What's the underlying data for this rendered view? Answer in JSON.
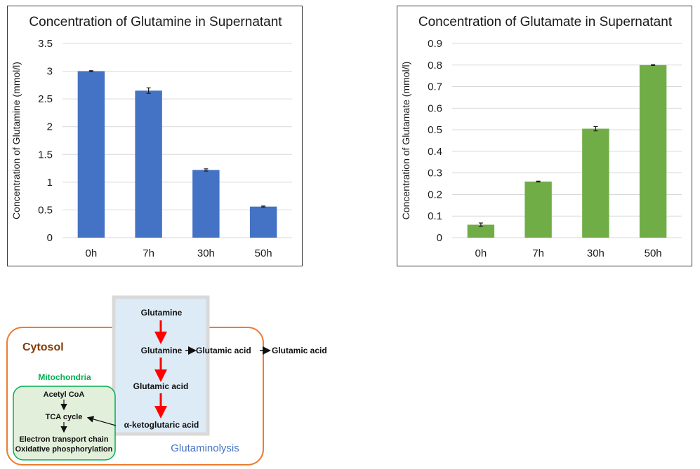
{
  "chart_data": [
    {
      "type": "bar",
      "title": "Concentration of Glutamine in Supernatant",
      "xlabel": "",
      "ylabel": "Concentration of Glutamine (mmol/l)",
      "categories": [
        "0h",
        "7h",
        "30h",
        "50h"
      ],
      "values": [
        3.0,
        2.65,
        1.22,
        0.56
      ],
      "errors": [
        0.01,
        0.05,
        0.02,
        0.01
      ],
      "ylim": [
        0,
        3.5
      ],
      "yticks": [
        "0",
        "0.5",
        "1",
        "1.5",
        "2",
        "2.5",
        "3",
        "3.5"
      ],
      "color": "#4472c4",
      "grid": true
    },
    {
      "type": "bar",
      "title": "Concentration of Glutamate in Supernatant",
      "xlabel": "",
      "ylabel": "Concentration of Glutamate (mmol/l)",
      "categories": [
        "0h",
        "7h",
        "30h",
        "50h"
      ],
      "values": [
        0.06,
        0.26,
        0.505,
        0.8
      ],
      "errors": [
        0.008,
        0.002,
        0.01,
        0.002
      ],
      "ylim": [
        0,
        0.9
      ],
      "yticks": [
        "0",
        "0.1",
        "0.2",
        "0.3",
        "0.4",
        "0.5",
        "0.6",
        "0.7",
        "0.8",
        "0.9"
      ],
      "color": "#70ad47",
      "grid": true
    }
  ],
  "diagram": {
    "cytosol": "Cytosol",
    "mitochondria": "Mitochondria",
    "glutaminolysis": "Glutaminolysis",
    "glutamine_top": "Glutamine",
    "glutamine_mid": "Glutamine",
    "glutamic_acid_right": "Glutamic acid",
    "glutamic_acid_outside": "Glutamic acid",
    "glutamic_acid_mid": "Glutamic acid",
    "alpha_keto": "α-ketoglutaric acid",
    "acetyl_coa": "Acetyl CoA",
    "tca_cycle": "TCA cycle",
    "etc": "Electron transport chain",
    "oxphos": "Oxidative phosphorylation",
    "colors": {
      "cytosol_border": "#ed7d31",
      "cytosol_text": "#843c0c",
      "mito_border": "#00b050",
      "mito_fill": "#e2efda",
      "mito_text": "#00b050",
      "glutaminolysis_fill": "#ddebf7",
      "glutaminolysis_border": "#d9d9d9",
      "glutaminolysis_text": "#4472c4",
      "red_arrow": "#ff0000"
    }
  }
}
